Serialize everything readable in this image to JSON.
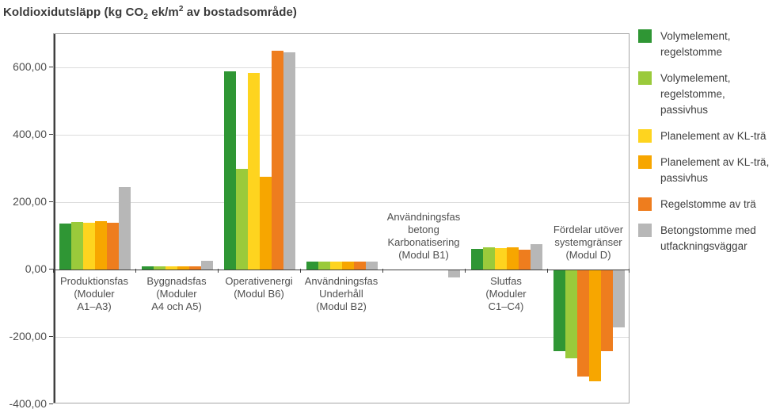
{
  "page": {
    "background": "#ffffff"
  },
  "title": {
    "part1": "Koldioxidutsläpp (kg CO",
    "sub": "2",
    "part2": " ek/m",
    "sup": "2",
    "part3": " av bostadsområde)"
  },
  "colors": {
    "grid": "#dcdcdc",
    "axis": "#3f3f3f",
    "frame": "#a6a6a6",
    "label_text": "#4f4f4f",
    "legend_text": "#404040",
    "title_text": "#3a3a3a"
  },
  "chart_data": {
    "type": "bar",
    "title": "Koldioxidutsläpp (kg CO2 ek/m2 av bostadsområde)",
    "ylabel": "kg CO2 ek/m2 av bostadsområde",
    "xlabel": "",
    "ylim": [
      -400,
      700
    ],
    "grid": "horizontal",
    "legend_position": "right",
    "yticks": [
      {
        "value": 600,
        "label": "600,00"
      },
      {
        "value": 400,
        "label": "400,00"
      },
      {
        "value": 200,
        "label": "200,00"
      },
      {
        "value": 0,
        "label": "0,00"
      },
      {
        "value": -200,
        "label": "-200,00"
      },
      {
        "value": -400,
        "label": "-400,00"
      }
    ],
    "categories": [
      {
        "label": "Produktionsfas (Moduler A1–A3)",
        "lines": [
          "Produktionsfas",
          "(Moduler",
          "A1–A3)"
        ],
        "label_position": "below"
      },
      {
        "label": "Byggnadsfas (Moduler A4 och A5)",
        "lines": [
          "Byggnadsfas",
          "(Moduler",
          "A4 och A5)"
        ],
        "label_position": "below"
      },
      {
        "label": "Operativenergi (Modul B6)",
        "lines": [
          "Operativenergi",
          "(Modul B6)"
        ],
        "label_position": "below"
      },
      {
        "label": "Användningsfas Underhåll (Modul B2)",
        "lines": [
          "Användningsfas",
          "Underhåll",
          "(Modul B2)"
        ],
        "label_position": "below"
      },
      {
        "label": "Användningsfas betong Karbonatisering (Modul B1)",
        "lines": [
          "Användningsfas",
          "betong",
          "Karbonatisering",
          "(Modul B1)"
        ],
        "label_position": "above"
      },
      {
        "label": "Slutfas (Moduler C1–C4)",
        "lines": [
          "Slutfas",
          "(Moduler",
          "C1–C4)"
        ],
        "label_position": "below"
      },
      {
        "label": "Fördelar utöver systemgränser (Modul D)",
        "lines": [
          "Fördelar utöver",
          "systemgränser",
          "(Modul D)"
        ],
        "label_position": "above"
      }
    ],
    "series": [
      {
        "name": "Volymelement, regelstomme",
        "legend_lines": [
          "Volymelement,",
          "regelstomme"
        ],
        "color": "#2f9634",
        "values": [
          138,
          10,
          590,
          24,
          0,
          62,
          -240
        ]
      },
      {
        "name": "Volymelement, regelstomme, passivhus",
        "legend_lines": [
          "Volymelement,",
          "regelstomme,",
          "passivhus"
        ],
        "color": "#9aca3b",
        "values": [
          142,
          9,
          300,
          24,
          0,
          66,
          -260
        ]
      },
      {
        "name": "Planelement av KL-trä",
        "legend_lines": [
          "Planelement av KL-trä"
        ],
        "color": "#fed41f",
        "values": [
          140,
          9,
          585,
          24,
          0,
          65,
          -315
        ]
      },
      {
        "name": "Planelement av KL-trä, passivhus",
        "legend_lines": [
          "Planelement av KL-trä,",
          "passivhus"
        ],
        "color": "#f7a600",
        "values": [
          145,
          9,
          275,
          24,
          0,
          66,
          -330
        ]
      },
      {
        "name": "Regelstomme av trä",
        "legend_lines": [
          "Regelstomme av trä"
        ],
        "color": "#ee7d1e",
        "values": [
          139,
          11,
          650,
          24,
          0,
          60,
          -240
        ]
      },
      {
        "name": "Betongstomme med utfackningsväggar",
        "legend_lines": [
          "Betongstomme med",
          "utfackningsväggar"
        ],
        "color": "#b7b7b7",
        "values": [
          245,
          27,
          645,
          24,
          -21,
          75,
          -170
        ]
      }
    ],
    "color_overrides": [
      {
        "category_index": 6,
        "series_index": 2,
        "color": "#ee7d1e"
      }
    ]
  }
}
